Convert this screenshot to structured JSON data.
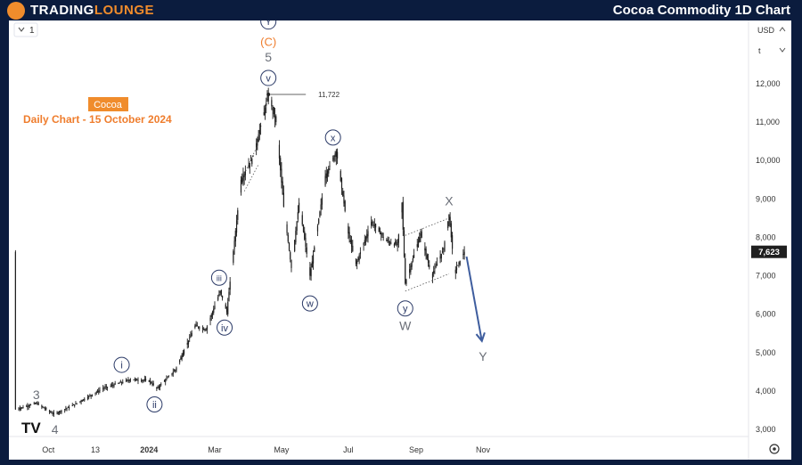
{
  "brand": {
    "name_part1": "TRADING",
    "name_part2": "LOUNGE"
  },
  "header": {
    "title": "Cocoa Commodity 1D Chart"
  },
  "toolbar": {
    "interval": "1",
    "currency": "USD",
    "scale_mode": "t"
  },
  "annotation": {
    "name": "Cocoa",
    "subtitle": "Daily Chart - 15 October 2024"
  },
  "tv_logo": "TV",
  "colors": {
    "candles": "#1f1f1f",
    "price_tag": "#1f1f1f",
    "wave_label": "#2b3a67",
    "orange": "#ef7d2d",
    "arrow": "#3e5d9e"
  },
  "chart_data": {
    "type": "candlestick",
    "x_axis_labels": [
      "Oct",
      "13",
      "2024",
      "Mar",
      "May",
      "Jul",
      "Sep",
      "Nov"
    ],
    "y_axis": {
      "min": 3000,
      "max": 12500,
      "ticks": [
        3000,
        4000,
        5000,
        6000,
        7000,
        8000,
        9000,
        10000,
        11000,
        12000
      ],
      "tick_labels": [
        "3,000",
        "4,000",
        "5,000",
        "6,000",
        "7,000",
        "8,000",
        "9,000",
        "10,000",
        "11,000",
        "12,000"
      ]
    },
    "last_price": {
      "value": 7623,
      "label": "7,623"
    },
    "high_marker": {
      "value": 11722,
      "label": "11,722"
    },
    "price_path": [
      {
        "date": "2023-09-01",
        "price": 3520
      },
      {
        "date": "2023-09-20",
        "price": 3680
      },
      {
        "date": "2023-10-06",
        "price": 3390
      },
      {
        "date": "2023-10-25",
        "price": 3650
      },
      {
        "date": "2023-11-20",
        "price": 4070
      },
      {
        "date": "2023-12-15",
        "price": 4300
      },
      {
        "date": "2024-01-01",
        "price": 4270
      },
      {
        "date": "2024-01-08",
        "price": 4060
      },
      {
        "date": "2024-01-25",
        "price": 4550
      },
      {
        "date": "2024-02-12",
        "price": 5700
      },
      {
        "date": "2024-02-22",
        "price": 5600
      },
      {
        "date": "2024-03-06",
        "price": 6600
      },
      {
        "date": "2024-03-12",
        "price": 6050
      },
      {
        "date": "2024-03-25",
        "price": 9500
      },
      {
        "date": "2024-04-05",
        "price": 10100
      },
      {
        "date": "2024-04-19",
        "price": 11722
      },
      {
        "date": "2024-04-26",
        "price": 11000
      },
      {
        "date": "2024-05-03",
        "price": 8800
      },
      {
        "date": "2024-05-10",
        "price": 7200
      },
      {
        "date": "2024-05-17",
        "price": 8900
      },
      {
        "date": "2024-05-27",
        "price": 7000
      },
      {
        "date": "2024-06-10",
        "price": 9600
      },
      {
        "date": "2024-06-20",
        "price": 10250
      },
      {
        "date": "2024-07-01",
        "price": 8100
      },
      {
        "date": "2024-07-08",
        "price": 7300
      },
      {
        "date": "2024-07-22",
        "price": 8400
      },
      {
        "date": "2024-08-05",
        "price": 7900
      },
      {
        "date": "2024-08-15",
        "price": 7800
      },
      {
        "date": "2024-08-19",
        "price": 8900
      },
      {
        "date": "2024-08-22",
        "price": 6800
      },
      {
        "date": "2024-09-05",
        "price": 8100
      },
      {
        "date": "2024-09-15",
        "price": 7000
      },
      {
        "date": "2024-09-26",
        "price": 7700
      },
      {
        "date": "2024-10-01",
        "price": 8600
      },
      {
        "date": "2024-10-06",
        "price": 7100
      },
      {
        "date": "2024-10-15",
        "price": 7623
      }
    ],
    "wave_labels": [
      {
        "text": "3",
        "date": "2023-09-20",
        "price": 3900,
        "circled": false,
        "color": "gray"
      },
      {
        "text": "4",
        "date": "2023-10-07",
        "price": 3000,
        "circled": false,
        "color": "gray"
      },
      {
        "text": "i",
        "date": "2023-12-07",
        "price": 4680,
        "circled": true,
        "color": "navy"
      },
      {
        "text": "ii",
        "date": "2024-01-06",
        "price": 3650,
        "circled": true,
        "color": "navy"
      },
      {
        "text": "iii",
        "date": "2024-03-05",
        "price": 6950,
        "circled": true,
        "color": "navy"
      },
      {
        "text": "iv",
        "date": "2024-03-10",
        "price": 5650,
        "circled": true,
        "color": "navy"
      },
      {
        "text": "v",
        "date": "2024-04-19",
        "price": 12150,
        "circled": true,
        "color": "navy"
      },
      {
        "text": "5",
        "date": "2024-04-19",
        "price": 12700,
        "circled": false,
        "color": "gray"
      },
      {
        "text": "(C)",
        "date": "2024-04-19",
        "price": 13100,
        "circled": false,
        "color": "orange"
      },
      {
        "text": "Y",
        "date": "2024-04-19",
        "price": 13620,
        "circled": true,
        "color": "navy"
      },
      {
        "text": "w",
        "date": "2024-05-27",
        "price": 6280,
        "circled": true,
        "color": "navy"
      },
      {
        "text": "x",
        "date": "2024-06-17",
        "price": 10600,
        "circled": true,
        "color": "navy"
      },
      {
        "text": "y",
        "date": "2024-08-22",
        "price": 6150,
        "circled": true,
        "color": "navy"
      },
      {
        "text": "W",
        "date": "2024-08-22",
        "price": 5700,
        "circled": false,
        "color": "gray"
      },
      {
        "text": "X",
        "date": "2024-10-01",
        "price": 8950,
        "circled": false,
        "color": "gray"
      },
      {
        "text": "Y",
        "date": "2024-11-01",
        "price": 4900,
        "circled": false,
        "color": "gray"
      }
    ],
    "channel": {
      "lower": [
        {
          "date": "2024-08-22",
          "price": 6600
        },
        {
          "date": "2024-10-01",
          "price": 7050
        }
      ],
      "upper": [
        {
          "date": "2024-08-22",
          "price": 8050
        },
        {
          "date": "2024-10-01",
          "price": 8500
        }
      ]
    },
    "wedge": {
      "lower": [
        {
          "date": "2024-03-28",
          "price": 9200
        },
        {
          "date": "2024-04-10",
          "price": 9900
        }
      ],
      "upper": [
        {
          "date": "2024-03-28",
          "price": 9650
        },
        {
          "date": "2024-04-10",
          "price": 10450
        }
      ]
    },
    "projection": {
      "from": {
        "date": "2024-10-17",
        "price": 7500
      },
      "to": {
        "date": "2024-10-31",
        "price": 5300
      }
    }
  }
}
